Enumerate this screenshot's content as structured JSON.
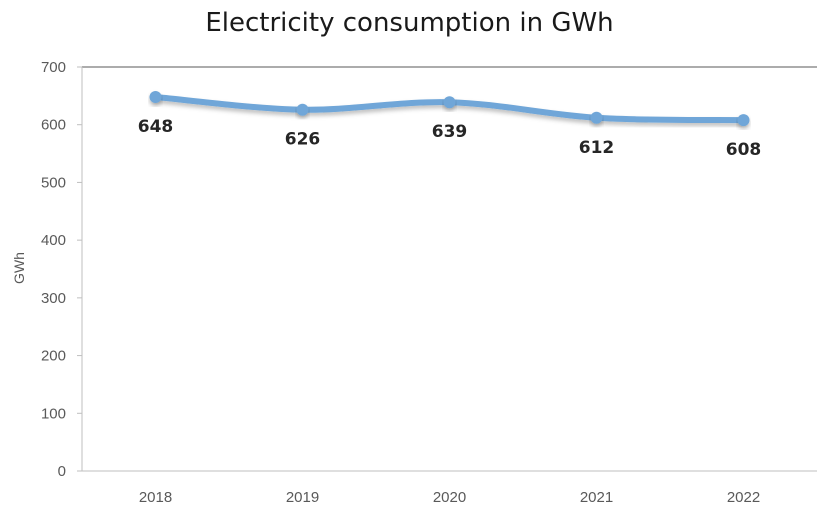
{
  "chart_data": {
    "type": "line",
    "title": "Electricity consumption in GWh",
    "xlabel": "",
    "ylabel": "GWh",
    "categories": [
      "2018",
      "2019",
      "2020",
      "2021",
      "2022"
    ],
    "series": [
      {
        "values": [
          648,
          626,
          639,
          612,
          608
        ]
      }
    ],
    "data_labels": [
      "648",
      "626",
      "639",
      "612",
      "608"
    ],
    "ylim": [
      0,
      700
    ],
    "yticks": [
      "0",
      "100",
      "200",
      "300",
      "400",
      "500",
      "600",
      "700"
    ],
    "grid": false,
    "legend": "none",
    "colors": {
      "line": "#6fa6d8",
      "axis": "#bfbfbf",
      "top_border": "#595959"
    }
  }
}
